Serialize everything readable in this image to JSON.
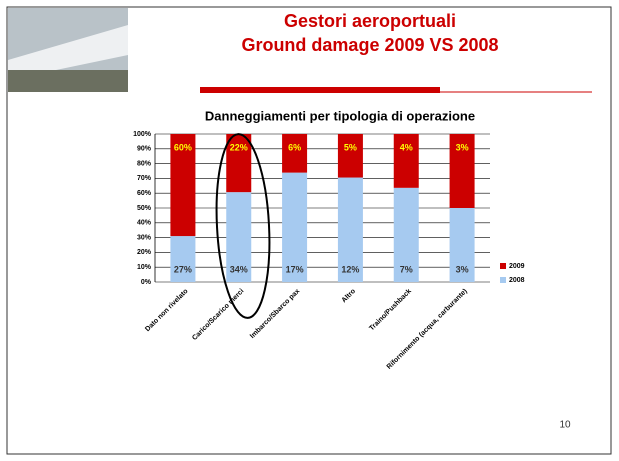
{
  "slide_title": [
    "Gestori aeroportuali",
    "Ground damage 2009 VS 2008"
  ],
  "page_number": "10",
  "chart_data": {
    "type": "bar",
    "stacking": "percent",
    "title": "Danneggiamenti per tipologia di operazione",
    "categories": [
      "Dato non rivelato",
      "Carico/Scarico merci",
      "Imbarco/Sbarco pax",
      "Altro",
      "Traino/Pushback",
      "Rifornimento (acqua, carburante)"
    ],
    "series": [
      {
        "name": "2008",
        "color": "#a6caf0",
        "label_color": "#333333",
        "values": [
          27,
          34,
          17,
          12,
          7,
          3
        ],
        "value_labels": [
          "27%",
          "34%",
          "17%",
          "12%",
          "7%",
          "3%"
        ]
      },
      {
        "name": "2009",
        "color": "#cc0000",
        "label_color": "#ffff00",
        "values": [
          60,
          22,
          6,
          5,
          4,
          3
        ],
        "value_labels": [
          "60%",
          "22%",
          "6%",
          "5%",
          "4%",
          "3%"
        ]
      }
    ],
    "ylim": [
      0,
      100
    ],
    "yticks": [
      {
        "value": 0,
        "label": "0%"
      },
      {
        "value": 10,
        "label": "10%"
      },
      {
        "value": 20,
        "label": "20%"
      },
      {
        "value": 30,
        "label": "30%"
      },
      {
        "value": 40,
        "label": "40%"
      },
      {
        "value": 50,
        "label": "50%"
      },
      {
        "value": 60,
        "label": "60%"
      },
      {
        "value": 70,
        "label": "70%"
      },
      {
        "value": 80,
        "label": "80%"
      },
      {
        "value": 90,
        "label": "90%"
      },
      {
        "value": 100,
        "label": "100%"
      }
    ],
    "grid": true,
    "legend": "right"
  }
}
